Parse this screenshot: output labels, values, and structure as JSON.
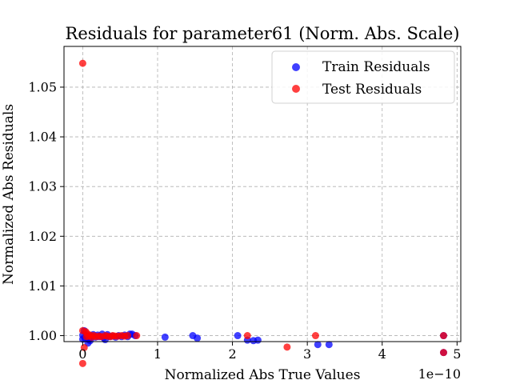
{
  "chart_data": {
    "type": "scatter",
    "title": "Residuals for parameter61 (Norm. Abs. Scale)",
    "xlabel": "Normalized Abs True Values",
    "ylabel": "Normalized Abs Residuals",
    "x_offset_text": "1e−10",
    "xlim": [
      -0.25,
      5.05
    ],
    "ylim": [
      0.9988,
      1.0582
    ],
    "x_unit_note": "x values are in units of 1e-10",
    "xticks": [
      0,
      1,
      2,
      3,
      4,
      5
    ],
    "xtick_labels": [
      "0",
      "1",
      "2",
      "3",
      "4",
      "5"
    ],
    "yticks": [
      1.0,
      1.01,
      1.02,
      1.03,
      1.04,
      1.05
    ],
    "ytick_labels": [
      "1.00",
      "1.01",
      "1.02",
      "1.03",
      "1.04",
      "1.05"
    ],
    "grid": true,
    "legend_position": "top-right",
    "series": [
      {
        "name": "Train Residuals",
        "color": "#0000ff",
        "points": [
          [
            0.0,
            1.0001
          ],
          [
            0.0,
            0.9993
          ],
          [
            0.02,
            1.001
          ],
          [
            0.03,
            0.9995
          ],
          [
            0.05,
            1.0
          ],
          [
            0.07,
            0.9985
          ],
          [
            0.08,
            0.9992
          ],
          [
            0.1,
            0.999
          ],
          [
            0.12,
            0.9999
          ],
          [
            0.14,
            1.0002
          ],
          [
            0.17,
            0.9997
          ],
          [
            0.2,
            1.0001
          ],
          [
            0.22,
            0.9998
          ],
          [
            0.26,
            1.0003
          ],
          [
            0.28,
            0.9996
          ],
          [
            0.3,
            0.9992
          ],
          [
            0.33,
            1.0002
          ],
          [
            0.36,
            0.9998
          ],
          [
            0.4,
            0.9999
          ],
          [
            0.44,
            0.9997
          ],
          [
            0.48,
            1.0
          ],
          [
            0.52,
            0.9998
          ],
          [
            0.56,
            1.0001
          ],
          [
            0.6,
            0.9998
          ],
          [
            0.63,
            1.0003
          ],
          [
            0.66,
            1.0003
          ],
          [
            0.7,
            1.0
          ],
          [
            1.1,
            0.9997
          ],
          [
            1.47,
            1.0
          ],
          [
            1.53,
            0.9995
          ],
          [
            2.07,
            1.0
          ],
          [
            2.2,
            0.9991
          ],
          [
            2.28,
            0.999
          ],
          [
            2.34,
            0.9991
          ],
          [
            3.14,
            0.9982
          ],
          [
            3.29,
            0.9982
          ],
          [
            4.82,
            1.0
          ],
          [
            4.82,
            0.9966
          ]
        ]
      },
      {
        "name": "Test Residuals",
        "color": "#ff0000",
        "points": [
          [
            0.0,
            1.0548
          ],
          [
            0.0,
            1.001
          ],
          [
            0.0,
            0.9944
          ],
          [
            0.02,
            0.9976
          ],
          [
            0.04,
            1.0008
          ],
          [
            0.05,
            0.9998
          ],
          [
            0.06,
            1.0004
          ],
          [
            0.08,
            0.9999
          ],
          [
            0.1,
            1.0001
          ],
          [
            0.12,
            0.9997
          ],
          [
            0.15,
            1.0
          ],
          [
            0.18,
            0.9998
          ],
          [
            0.22,
            0.9999
          ],
          [
            0.25,
            0.9998
          ],
          [
            0.3,
            1.0
          ],
          [
            0.33,
            0.9999
          ],
          [
            0.37,
            0.9998
          ],
          [
            0.4,
            1.0
          ],
          [
            0.43,
            0.9999
          ],
          [
            0.47,
            0.9999
          ],
          [
            0.52,
            1.0
          ],
          [
            0.56,
            0.9999
          ],
          [
            0.6,
            1.0
          ],
          [
            0.72,
            1.0
          ],
          [
            2.2,
            1.0
          ],
          [
            2.73,
            0.9977
          ],
          [
            3.11,
            1.0
          ],
          [
            4.82,
            1.0
          ],
          [
            4.82,
            0.9966
          ]
        ]
      }
    ]
  }
}
